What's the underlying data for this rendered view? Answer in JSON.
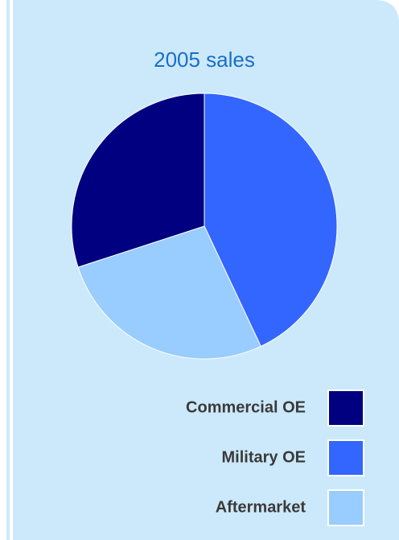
{
  "chart_data": {
    "type": "pie",
    "title": "2005 sales",
    "categories": [
      "Commercial OE",
      "Military OE",
      "Aftermarket"
    ],
    "values": [
      30,
      43,
      27
    ],
    "colors": [
      "#000080",
      "#3366ff",
      "#99ccff"
    ],
    "legend": "bottom-right"
  }
}
